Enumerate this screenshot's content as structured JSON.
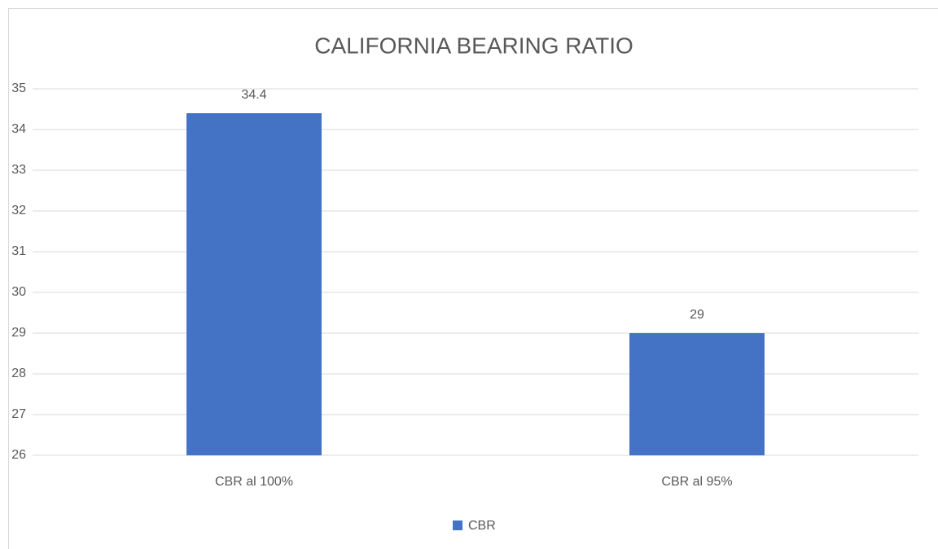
{
  "chart_data": {
    "type": "bar",
    "title": "CALIFORNIA BEARING RATIO",
    "categories": [
      "CBR al 100%",
      "CBR al 95%"
    ],
    "series": [
      {
        "name": "CBR",
        "color": "#4472c4",
        "values": [
          34.4,
          29
        ]
      }
    ],
    "ylim": [
      26,
      35
    ],
    "yticks": [
      26,
      27,
      28,
      29,
      30,
      31,
      32,
      33,
      34,
      35
    ],
    "grid": true,
    "legend": "bottom",
    "data_labels": true
  }
}
